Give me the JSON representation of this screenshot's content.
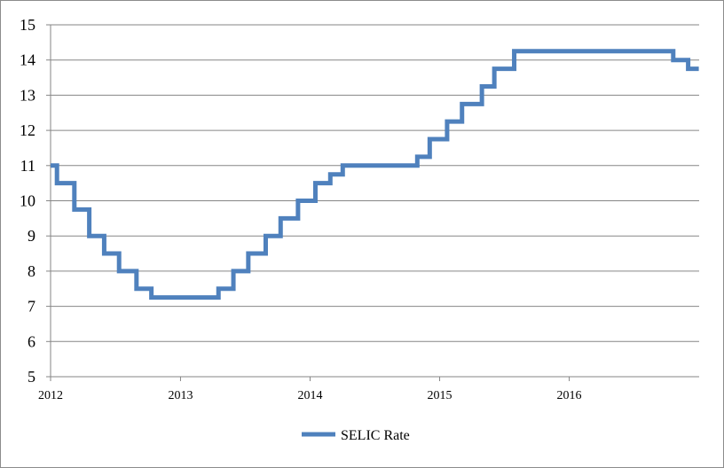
{
  "chart_data": {
    "type": "line",
    "title": "",
    "xlabel": "",
    "ylabel": "",
    "x_ticks": [
      "2012",
      "2013",
      "2014",
      "2015",
      "2016"
    ],
    "y_ticks": [
      "5",
      "6",
      "7",
      "8",
      "9",
      "10",
      "11",
      "12",
      "13",
      "14",
      "15"
    ],
    "xlim": [
      "2012-01-01",
      "2016-12-31"
    ],
    "ylim": [
      5,
      15
    ],
    "grid": "horizontal",
    "legend_position": "bottom",
    "line_style": "step",
    "colors": {
      "series": "#4f81bd",
      "grid": "#868686",
      "axis": "#868686"
    },
    "series": [
      {
        "name": "SELIC Rate",
        "points": [
          [
            "2012-01-01",
            11.0
          ],
          [
            "2012-01-19",
            10.5
          ],
          [
            "2012-03-08",
            9.75
          ],
          [
            "2012-04-19",
            9.0
          ],
          [
            "2012-05-31",
            8.5
          ],
          [
            "2012-07-12",
            8.0
          ],
          [
            "2012-08-30",
            7.5
          ],
          [
            "2012-10-11",
            7.25
          ],
          [
            "2013-04-18",
            7.5
          ],
          [
            "2013-05-30",
            8.0
          ],
          [
            "2013-07-11",
            8.5
          ],
          [
            "2013-08-29",
            9.0
          ],
          [
            "2013-10-10",
            9.5
          ],
          [
            "2013-11-28",
            10.0
          ],
          [
            "2014-01-16",
            10.5
          ],
          [
            "2014-02-27",
            10.75
          ],
          [
            "2014-04-03",
            11.0
          ],
          [
            "2014-10-30",
            11.25
          ],
          [
            "2014-12-04",
            11.75
          ],
          [
            "2015-01-22",
            12.25
          ],
          [
            "2015-03-05",
            12.75
          ],
          [
            "2015-04-30",
            13.25
          ],
          [
            "2015-06-04",
            13.75
          ],
          [
            "2015-07-30",
            14.25
          ],
          [
            "2016-10-20",
            14.0
          ],
          [
            "2016-12-01",
            13.75
          ],
          [
            "2016-12-31",
            13.75
          ]
        ]
      }
    ]
  }
}
